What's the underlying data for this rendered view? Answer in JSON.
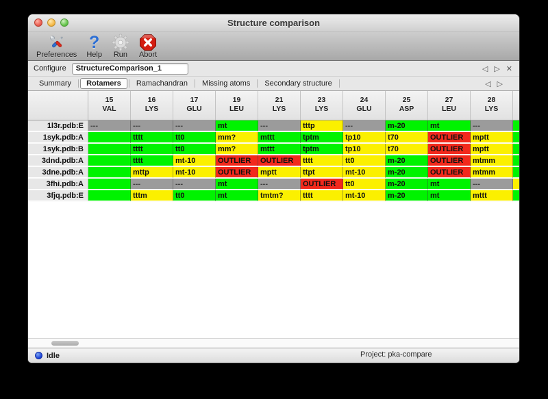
{
  "window": {
    "title": "Structure comparison"
  },
  "toolbar": {
    "items": [
      {
        "id": "preferences",
        "label": "Preferences"
      },
      {
        "id": "help",
        "label": "Help"
      },
      {
        "id": "run",
        "label": "Run"
      },
      {
        "id": "abort",
        "label": "Abort"
      }
    ]
  },
  "configure": {
    "label": "Configure",
    "value": "StructureComparison_1",
    "nav": {
      "prev": "◁",
      "next": "▷",
      "close": "✕"
    }
  },
  "tabs": {
    "items": [
      "Summary",
      "Rotamers",
      "Ramachandran",
      "Missing atoms",
      "Secondary structure"
    ],
    "active": "Rotamers",
    "nav": {
      "prev": "◁",
      "next": "▷"
    }
  },
  "colors": {
    "green": "#00f300",
    "yellow": "#fbf000",
    "red": "#f2291c",
    "gray": "#9b9b9b"
  },
  "table": {
    "columns": [
      {
        "num": "15",
        "res": "VAL"
      },
      {
        "num": "16",
        "res": "LYS"
      },
      {
        "num": "17",
        "res": "GLU"
      },
      {
        "num": "19",
        "res": "LEU"
      },
      {
        "num": "21",
        "res": "LYS"
      },
      {
        "num": "23",
        "res": "LYS"
      },
      {
        "num": "24",
        "res": "GLU"
      },
      {
        "num": "25",
        "res": "ASP"
      },
      {
        "num": "27",
        "res": "LEU"
      },
      {
        "num": "28",
        "res": "LYS"
      }
    ],
    "rows": [
      {
        "label": "1l3r.pdb:E",
        "sliver": "green",
        "cells": [
          {
            "text": "---",
            "color": "gray"
          },
          {
            "text": "---",
            "color": "gray"
          },
          {
            "text": "---",
            "color": "gray"
          },
          {
            "text": "mt",
            "color": "green"
          },
          {
            "text": "---",
            "color": "gray"
          },
          {
            "text": "tttp",
            "color": "yellow"
          },
          {
            "text": "---",
            "color": "gray"
          },
          {
            "text": "m-20",
            "color": "green"
          },
          {
            "text": "mt",
            "color": "green"
          },
          {
            "text": "---",
            "color": "gray"
          }
        ]
      },
      {
        "label": "1syk.pdb:A",
        "sliver": "green",
        "cells": [
          {
            "text": "",
            "color": "green"
          },
          {
            "text": "tttt",
            "color": "green"
          },
          {
            "text": "tt0",
            "color": "green"
          },
          {
            "text": "mm?",
            "color": "yellow"
          },
          {
            "text": "mttt",
            "color": "green"
          },
          {
            "text": "tptm",
            "color": "green"
          },
          {
            "text": "tp10",
            "color": "yellow"
          },
          {
            "text": "t70",
            "color": "yellow"
          },
          {
            "text": "OUTLIER",
            "color": "red"
          },
          {
            "text": "mptt",
            "color": "yellow"
          }
        ]
      },
      {
        "label": "1syk.pdb:B",
        "sliver": "green",
        "cells": [
          {
            "text": "",
            "color": "green"
          },
          {
            "text": "tttt",
            "color": "green"
          },
          {
            "text": "tt0",
            "color": "green"
          },
          {
            "text": "mm?",
            "color": "yellow"
          },
          {
            "text": "mttt",
            "color": "green"
          },
          {
            "text": "tptm",
            "color": "green"
          },
          {
            "text": "tp10",
            "color": "yellow"
          },
          {
            "text": "t70",
            "color": "yellow"
          },
          {
            "text": "OUTLIER",
            "color": "red"
          },
          {
            "text": "mptt",
            "color": "yellow"
          }
        ]
      },
      {
        "label": "3dnd.pdb:A",
        "sliver": "green",
        "cells": [
          {
            "text": "",
            "color": "green"
          },
          {
            "text": "tttt",
            "color": "green"
          },
          {
            "text": "mt-10",
            "color": "yellow"
          },
          {
            "text": "OUTLIER",
            "color": "red"
          },
          {
            "text": "OUTLIER",
            "color": "red"
          },
          {
            "text": "tttt",
            "color": "yellow"
          },
          {
            "text": "tt0",
            "color": "yellow"
          },
          {
            "text": "m-20",
            "color": "green"
          },
          {
            "text": "OUTLIER",
            "color": "red"
          },
          {
            "text": "mtmm",
            "color": "yellow"
          }
        ]
      },
      {
        "label": "3dne.pdb:A",
        "sliver": "green",
        "cells": [
          {
            "text": "",
            "color": "green"
          },
          {
            "text": "mttp",
            "color": "yellow"
          },
          {
            "text": "mt-10",
            "color": "yellow"
          },
          {
            "text": "OUTLIER",
            "color": "red"
          },
          {
            "text": "mptt",
            "color": "yellow"
          },
          {
            "text": "ttpt",
            "color": "yellow"
          },
          {
            "text": "mt-10",
            "color": "yellow"
          },
          {
            "text": "m-20",
            "color": "green"
          },
          {
            "text": "OUTLIER",
            "color": "red"
          },
          {
            "text": "mtmm",
            "color": "yellow"
          }
        ]
      },
      {
        "label": "3fhi.pdb:A",
        "sliver": "yellow",
        "cells": [
          {
            "text": "",
            "color": "green"
          },
          {
            "text": "---",
            "color": "gray"
          },
          {
            "text": "---",
            "color": "gray"
          },
          {
            "text": "mt",
            "color": "green"
          },
          {
            "text": "---",
            "color": "gray"
          },
          {
            "text": "OUTLIER",
            "color": "red"
          },
          {
            "text": "tt0",
            "color": "yellow"
          },
          {
            "text": "m-20",
            "color": "green"
          },
          {
            "text": "mt",
            "color": "green"
          },
          {
            "text": "---",
            "color": "gray"
          }
        ]
      },
      {
        "label": "3fjq.pdb:E",
        "sliver": "green",
        "cells": [
          {
            "text": "",
            "color": "green"
          },
          {
            "text": "tttm",
            "color": "yellow"
          },
          {
            "text": "tt0",
            "color": "green"
          },
          {
            "text": "mt",
            "color": "green"
          },
          {
            "text": "tmtm?",
            "color": "yellow"
          },
          {
            "text": "tttt",
            "color": "yellow"
          },
          {
            "text": "mt-10",
            "color": "yellow"
          },
          {
            "text": "m-20",
            "color": "green"
          },
          {
            "text": "mt",
            "color": "green"
          },
          {
            "text": "mttt",
            "color": "yellow"
          }
        ]
      }
    ]
  },
  "statusbar": {
    "status": "Idle",
    "project": "Project: pka-compare"
  }
}
